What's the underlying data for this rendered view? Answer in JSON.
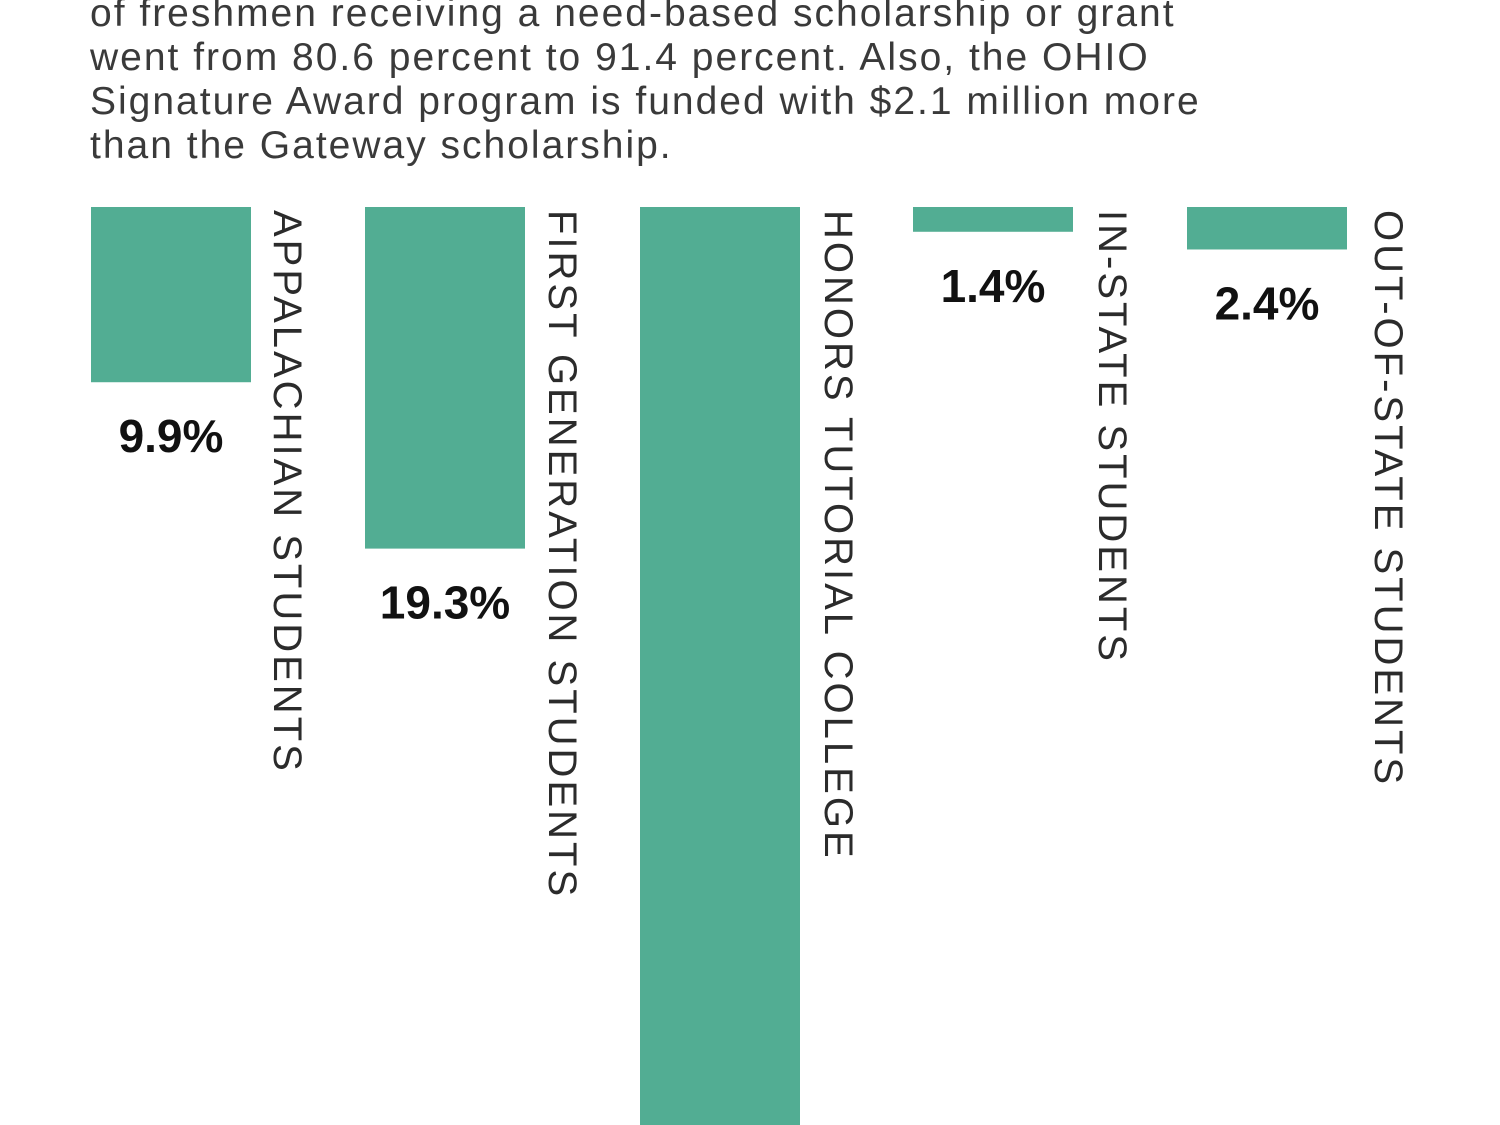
{
  "intro": {
    "lines": [
      "of freshmen receiving a need-based scholarship or grant",
      "went from 80.6 percent to 91.4 percent. Also, the OHIO",
      "Signature Award program is funded with $2.1 million more",
      "than the Gateway scholarship."
    ]
  },
  "chart_data": {
    "type": "bar",
    "orientation": "vertical-downward",
    "categories": [
      "APPALACHIAN STUDENTS",
      "FIRST GENERATION STUDENTS",
      "HONORS TUTORIAL COLLEGE",
      "IN-STATE STUDENTS",
      "OUT-OF-STATE STUDENTS"
    ],
    "values": [
      9.9,
      19.3,
      null,
      1.4,
      2.4
    ],
    "value_labels": [
      "9.9%",
      "19.3%",
      "",
      "1.4%",
      "2.4%"
    ],
    "bar_color": "#52ad93",
    "grid": false,
    "legend": "none"
  }
}
